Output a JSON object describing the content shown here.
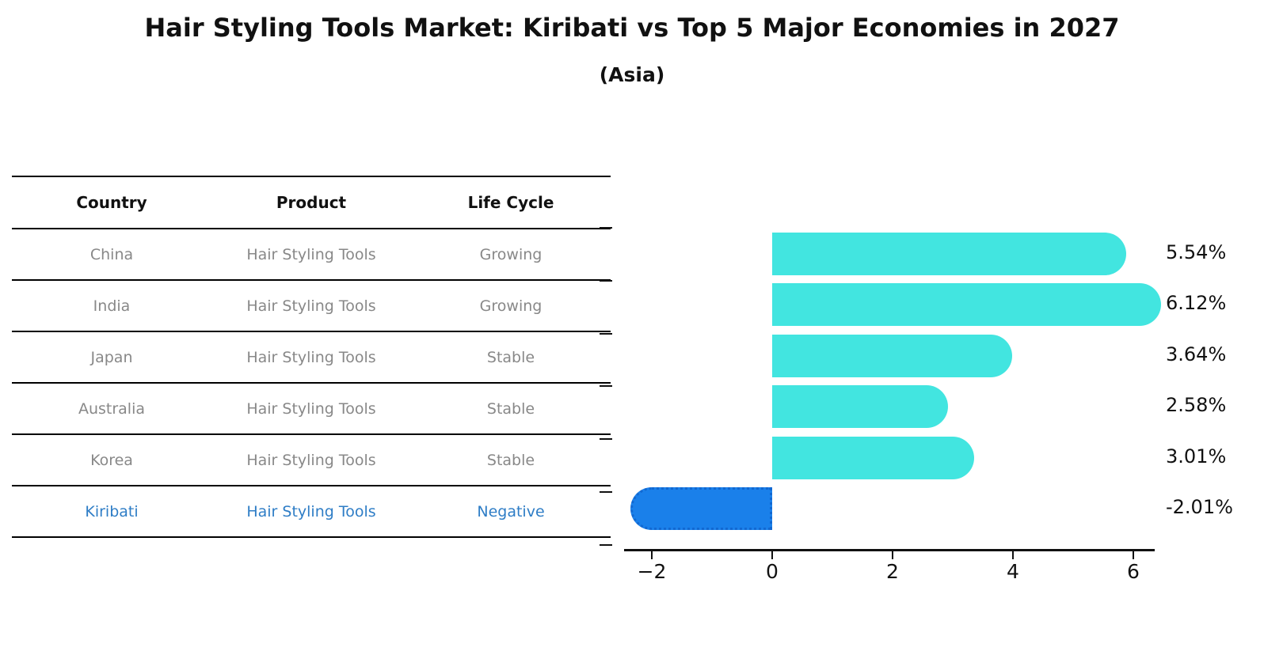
{
  "title": "Hair Styling Tools Market: Kiribati vs Top 5 Major Economies in 2027",
  "subtitle": "(Asia)",
  "table": {
    "headers": [
      "Country",
      "Product",
      "Life Cycle"
    ],
    "rows": [
      {
        "country": "China",
        "product": "Hair Styling Tools",
        "life_cycle": "Growing",
        "highlight": false
      },
      {
        "country": "India",
        "product": "Hair Styling Tools",
        "life_cycle": "Growing",
        "highlight": false
      },
      {
        "country": "Japan",
        "product": "Hair Styling Tools",
        "life_cycle": "Stable",
        "highlight": false
      },
      {
        "country": "Australia",
        "product": "Hair Styling Tools",
        "life_cycle": "Stable",
        "highlight": false
      },
      {
        "country": "Korea",
        "product": "Hair Styling Tools",
        "life_cycle": "Stable",
        "highlight": false
      },
      {
        "country": "Kiribati",
        "product": "Hair Styling Tools",
        "life_cycle": "Negative",
        "highlight": true
      }
    ]
  },
  "chart_data": {
    "type": "bar",
    "orientation": "horizontal",
    "title": "Hair Styling Tools Market: Kiribati vs Top 5 Major Economies in 2027",
    "subtitle": "(Asia)",
    "categories": [
      "China",
      "India",
      "Japan",
      "Australia",
      "Korea",
      "Kiribati"
    ],
    "values": [
      5.54,
      6.12,
      3.64,
      2.58,
      3.01,
      -2.01
    ],
    "value_labels": [
      "5.54%",
      "6.12%",
      "3.64%",
      "2.58%",
      "3.01%",
      "-2.01%"
    ],
    "xlabel": "",
    "ylabel": "",
    "xticks": [
      -2,
      0,
      2,
      4,
      6
    ],
    "xtick_labels": [
      "−2",
      "0",
      "2",
      "4",
      "6"
    ],
    "xlim": [
      -2.45,
      6.35
    ],
    "grid": false,
    "legend": false,
    "highlight_index": 5,
    "bar_color": "#42e5e0",
    "highlight_bar_color": "#1a80ea"
  },
  "colors": {
    "background": "#ffffff",
    "table_header_text": "#111111",
    "table_row_text": "#888888",
    "highlight_text": "#2e7dc6",
    "axis": "#111111",
    "value_label_text": "#111111"
  }
}
